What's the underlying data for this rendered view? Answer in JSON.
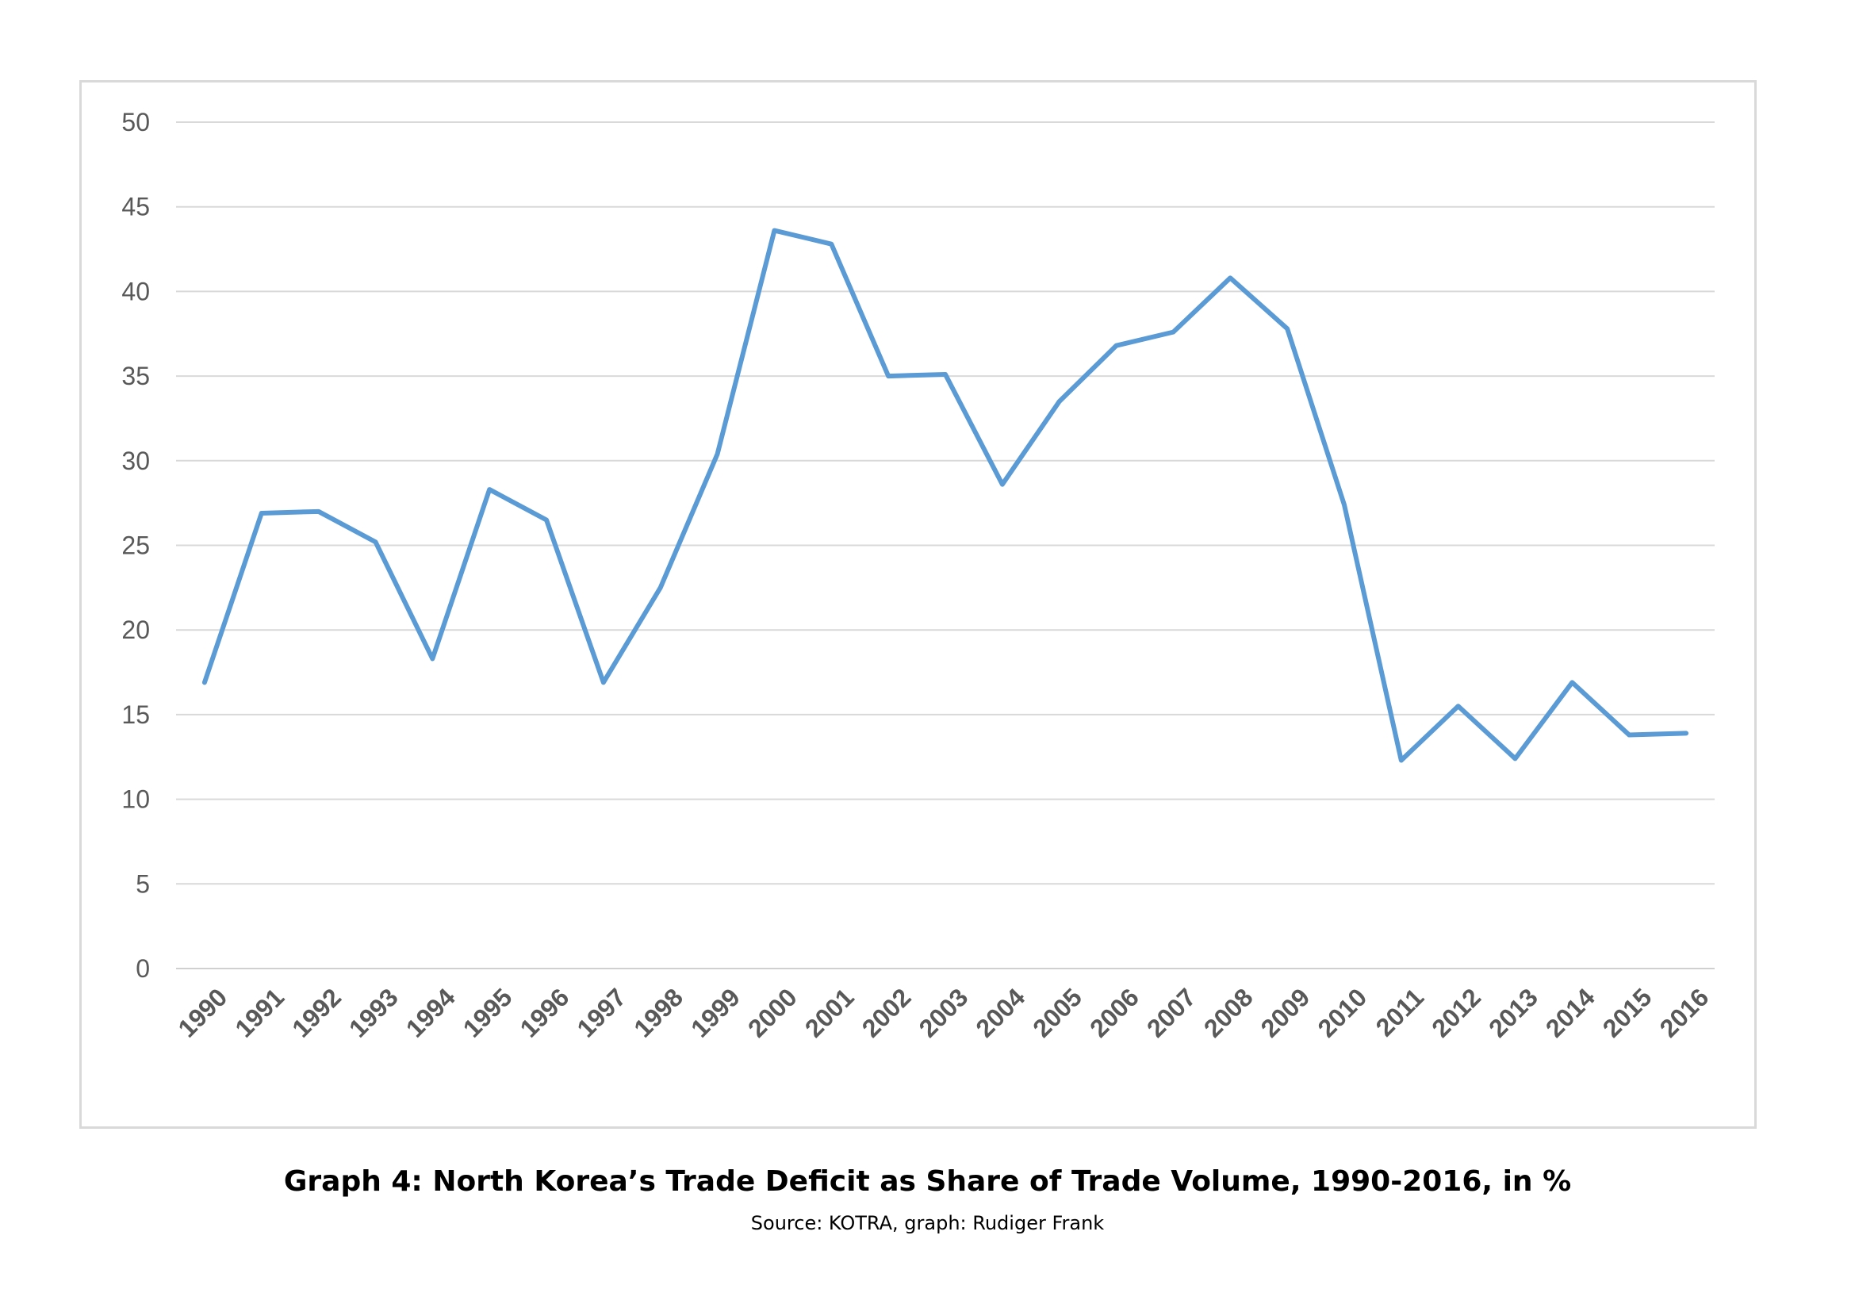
{
  "chart_data": {
    "type": "line",
    "title": "",
    "xlabel": "",
    "ylabel": "",
    "ylim": [
      0,
      50
    ],
    "yticks": [
      "0",
      "5",
      "10",
      "15",
      "20",
      "25",
      "30",
      "35",
      "40",
      "45",
      "50"
    ],
    "grid": true,
    "legend": "none",
    "categories": [
      "1990",
      "1991",
      "1992",
      "1993",
      "1994",
      "1995",
      "1996",
      "1997",
      "1998",
      "1999",
      "2000",
      "2001",
      "2002",
      "2003",
      "2004",
      "2005",
      "2006",
      "2007",
      "2008",
      "2009",
      "2010",
      "2011",
      "2012",
      "2013",
      "2014",
      "2015",
      "2016"
    ],
    "series": [
      {
        "values": [
          16.9,
          26.9,
          27.0,
          25.2,
          18.3,
          28.3,
          26.5,
          16.9,
          22.5,
          30.4,
          43.6,
          42.8,
          35.0,
          35.1,
          28.6,
          33.5,
          36.8,
          37.6,
          40.8,
          37.8,
          27.4,
          12.3,
          15.5,
          12.4,
          16.9,
          13.8,
          13.9
        ],
        "color": "#5b9bd5"
      }
    ]
  },
  "colors": {
    "line": "#5b9bd5",
    "grid": "#d9d9d9",
    "tick_text": "#595959",
    "frame": "#d9d9d9"
  },
  "caption": {
    "title": "Graph 4: North Korea’s Trade Deficit as Share of Trade Volume, 1990-2016, in %",
    "source": "Source: KOTRA, graph: Rudiger Frank"
  }
}
